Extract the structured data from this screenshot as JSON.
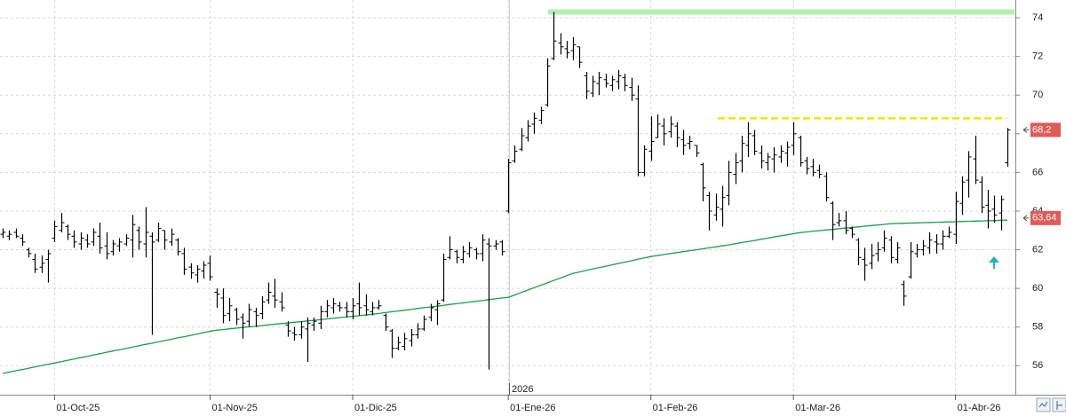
{
  "chart_data": {
    "type": "ohlc",
    "categories": [
      null,
      null,
      null,
      null,
      null,
      null,
      null,
      null,
      "01-Oct-25",
      null,
      null,
      null,
      null,
      null,
      null,
      null,
      null,
      null,
      null,
      null,
      null,
      null,
      null,
      null,
      null,
      null,
      null,
      null,
      null,
      null,
      null,
      null,
      "01-Nov-25",
      null,
      null,
      null,
      null,
      null,
      null,
      null,
      null,
      null,
      null,
      null,
      null,
      null,
      null,
      null,
      null,
      null,
      null,
      null,
      null,
      null,
      "01-Dic-25",
      null,
      null,
      null,
      null,
      null,
      null,
      null,
      null,
      null,
      null,
      null,
      null,
      null,
      null,
      null,
      null,
      null,
      null,
      null,
      null,
      null,
      null,
      null,
      "01-Ene-26",
      null,
      null,
      null,
      null,
      null,
      null,
      null,
      null,
      null,
      null,
      null,
      null,
      null,
      null,
      null,
      null,
      null,
      null,
      null,
      null,
      null,
      "01-Feb-26",
      null,
      null,
      null,
      null,
      null,
      null,
      null,
      null,
      null,
      null,
      null,
      null,
      null,
      null,
      null,
      null,
      null,
      null,
      null,
      null,
      null,
      "01-Mar-26",
      null,
      null,
      null,
      null,
      null,
      null,
      null,
      null,
      null,
      null,
      null,
      null,
      null,
      null,
      null,
      null,
      null,
      null,
      null,
      null,
      null,
      null,
      null,
      null,
      "01-Abr-26",
      null,
      null,
      null,
      null,
      null,
      null,
      null,
      null
    ],
    "ohlc": [
      [
        62.8,
        63.1,
        62.6,
        62.9
      ],
      [
        62.7,
        63.0,
        62.5,
        62.8
      ],
      [
        62.9,
        63.1,
        62.6,
        62.7
      ],
      [
        62.6,
        62.8,
        62.2,
        62.4
      ],
      [
        62.0,
        62.1,
        61.6,
        61.8
      ],
      [
        61.5,
        61.8,
        60.8,
        61.0
      ],
      [
        61.1,
        61.7,
        60.8,
        61.3
      ],
      [
        61.5,
        62.0,
        60.3,
        61.8
      ],
      [
        62.6,
        63.5,
        62.4,
        63.2
      ],
      [
        63.0,
        63.9,
        62.9,
        63.4
      ],
      [
        63.2,
        63.3,
        62.5,
        62.8
      ],
      [
        62.7,
        63.0,
        62.1,
        62.4
      ],
      [
        62.3,
        62.9,
        62.0,
        62.6
      ],
      [
        62.5,
        62.8,
        62.1,
        62.3
      ],
      [
        62.4,
        63.1,
        62.2,
        62.9
      ],
      [
        62.7,
        63.4,
        61.8,
        62.1
      ],
      [
        62.2,
        62.9,
        61.5,
        61.8
      ],
      [
        61.9,
        62.5,
        61.7,
        62.3
      ],
      [
        62.2,
        62.6,
        61.9,
        62.4
      ],
      [
        62.3,
        62.8,
        62.2,
        62.6
      ],
      [
        62.5,
        63.8,
        61.6,
        63.3
      ],
      [
        63.0,
        63.2,
        62.0,
        62.4
      ],
      [
        62.3,
        64.2,
        61.6,
        62.9
      ],
      [
        62.7,
        62.9,
        57.6,
        62.4
      ],
      [
        62.5,
        63.4,
        62.4,
        63.1
      ],
      [
        63.0,
        63.0,
        62.0,
        62.5
      ],
      [
        62.4,
        63.1,
        62.2,
        62.8
      ],
      [
        62.5,
        62.6,
        61.7,
        61.9
      ],
      [
        61.8,
        62.1,
        60.7,
        61.0
      ],
      [
        61.1,
        61.3,
        60.5,
        60.8
      ],
      [
        60.7,
        61.2,
        60.3,
        61.0
      ],
      [
        60.9,
        61.4,
        60.5,
        61.2
      ],
      [
        61.3,
        61.7,
        60.4,
        60.6
      ],
      [
        59.8,
        60.0,
        59.0,
        59.7
      ],
      [
        59.5,
        60.0,
        58.2,
        58.6
      ],
      [
        58.7,
        59.5,
        58.3,
        59.1
      ],
      [
        58.9,
        59.0,
        58.1,
        58.4
      ],
      [
        58.5,
        58.7,
        57.4,
        58.2
      ],
      [
        58.3,
        59.2,
        58.0,
        58.9
      ],
      [
        58.8,
        59.0,
        58.0,
        58.6
      ],
      [
        58.7,
        59.6,
        58.4,
        59.3
      ],
      [
        59.4,
        60.3,
        59.2,
        59.8
      ],
      [
        59.6,
        60.5,
        59.0,
        59.4
      ],
      [
        59.3,
        59.8,
        58.8,
        59.0
      ],
      [
        58.1,
        58.3,
        57.5,
        57.8
      ],
      [
        57.7,
        58.0,
        57.3,
        57.6
      ],
      [
        57.6,
        58.3,
        57.4,
        58.0
      ],
      [
        57.9,
        58.5,
        56.2,
        58.2
      ],
      [
        58.1,
        58.5,
        57.8,
        58.3
      ],
      [
        58.2,
        59.1,
        57.9,
        58.8
      ],
      [
        58.8,
        59.4,
        58.5,
        59.1
      ],
      [
        59.0,
        59.5,
        58.7,
        59.2
      ],
      [
        59.1,
        59.3,
        58.8,
        59.0
      ],
      [
        59.0,
        59.3,
        58.5,
        58.8
      ],
      [
        58.8,
        59.5,
        58.4,
        59.1
      ],
      [
        59.2,
        60.3,
        58.6,
        59.0
      ],
      [
        59.1,
        59.7,
        58.6,
        58.9
      ],
      [
        58.8,
        59.3,
        58.6,
        59.0
      ],
      [
        59.0,
        59.4,
        58.9,
        59.1
      ],
      [
        58.6,
        58.7,
        57.8,
        58.0
      ],
      [
        57.8,
        57.9,
        56.4,
        56.9
      ],
      [
        56.9,
        57.5,
        56.8,
        57.2
      ],
      [
        57.0,
        57.7,
        56.8,
        57.4
      ],
      [
        57.3,
        57.9,
        57.0,
        57.6
      ],
      [
        57.6,
        58.2,
        57.4,
        57.9
      ],
      [
        57.9,
        58.6,
        57.8,
        58.4
      ],
      [
        58.5,
        59.2,
        58.3,
        59.0
      ],
      [
        58.9,
        59.4,
        58.1,
        59.2
      ],
      [
        59.4,
        61.8,
        59.3,
        61.5
      ],
      [
        61.6,
        62.7,
        61.5,
        62.0
      ],
      [
        61.9,
        62.0,
        61.3,
        61.6
      ],
      [
        61.5,
        62.2,
        61.3,
        61.9
      ],
      [
        61.8,
        62.4,
        61.6,
        62.1
      ],
      [
        62.0,
        62.1,
        61.5,
        61.8
      ],
      [
        61.8,
        62.8,
        61.4,
        62.5
      ],
      [
        62.3,
        62.6,
        55.8,
        62.2
      ],
      [
        62.2,
        62.5,
        62.0,
        62.3
      ],
      [
        62.4,
        62.5,
        61.7,
        61.9
      ],
      [
        64.0,
        66.7,
        63.9,
        66.5
      ],
      [
        66.6,
        67.4,
        66.5,
        67.1
      ],
      [
        67.2,
        68.3,
        67.1,
        67.9
      ],
      [
        67.8,
        68.7,
        67.6,
        68.4
      ],
      [
        68.5,
        69.1,
        68.0,
        68.8
      ],
      [
        68.7,
        69.4,
        68.5,
        69.2
      ],
      [
        69.5,
        71.9,
        69.4,
        71.5
      ],
      [
        71.9,
        74.3,
        71.8,
        72.8
      ],
      [
        72.7,
        73.2,
        72.1,
        72.5
      ],
      [
        72.4,
        72.8,
        71.9,
        72.2
      ],
      [
        72.3,
        73.0,
        71.8,
        72.6
      ],
      [
        72.5,
        72.5,
        71.4,
        71.7
      ],
      [
        71.0,
        71.2,
        69.8,
        70.2
      ],
      [
        70.1,
        71.0,
        69.9,
        70.7
      ],
      [
        70.6,
        71.2,
        70.0,
        70.9
      ],
      [
        70.8,
        71.1,
        70.4,
        70.6
      ],
      [
        70.5,
        71.0,
        70.2,
        70.8
      ],
      [
        70.7,
        71.3,
        70.3,
        71.0
      ],
      [
        70.9,
        71.1,
        70.2,
        70.5
      ],
      [
        70.4,
        70.9,
        69.7,
        70.0
      ],
      [
        69.8,
        70.5,
        65.8,
        66.0
      ],
      [
        66.0,
        67.4,
        65.8,
        67.2
      ],
      [
        67.1,
        68.9,
        66.6,
        67.6
      ],
      [
        67.8,
        69.0,
        67.8,
        68.5
      ],
      [
        68.4,
        68.8,
        67.4,
        68.0
      ],
      [
        68.1,
        68.9,
        67.8,
        68.5
      ],
      [
        68.4,
        68.6,
        67.3,
        67.8
      ],
      [
        67.7,
        68.2,
        66.9,
        67.4
      ],
      [
        67.5,
        67.9,
        67.2,
        67.6
      ],
      [
        67.4,
        67.4,
        66.8,
        67.0
      ],
      [
        66.4,
        66.5,
        64.5,
        65.2
      ],
      [
        64.8,
        65.0,
        63.0,
        64.0
      ],
      [
        63.8,
        64.9,
        63.5,
        64.2
      ],
      [
        64.1,
        65.3,
        63.2,
        64.7
      ],
      [
        64.8,
        66.6,
        64.3,
        66.0
      ],
      [
        65.9,
        67.0,
        65.4,
        66.5
      ],
      [
        66.6,
        67.9,
        66.0,
        67.5
      ],
      [
        67.4,
        68.6,
        66.8,
        68.0
      ],
      [
        67.9,
        68.2,
        66.9,
        67.1
      ],
      [
        67.0,
        67.4,
        66.2,
        66.6
      ],
      [
        66.5,
        67.0,
        66.1,
        66.8
      ],
      [
        66.7,
        67.3,
        66.0,
        66.9
      ],
      [
        66.8,
        67.4,
        66.5,
        67.1
      ],
      [
        67.0,
        67.6,
        66.3,
        67.3
      ],
      [
        67.4,
        68.6,
        66.9,
        68.0
      ],
      [
        67.8,
        67.9,
        66.3,
        66.5
      ],
      [
        66.6,
        66.8,
        65.9,
        66.2
      ],
      [
        66.3,
        66.7,
        65.8,
        66.0
      ],
      [
        66.1,
        66.4,
        65.7,
        65.9
      ],
      [
        65.8,
        66.0,
        64.5,
        64.7
      ],
      [
        64.4,
        64.5,
        62.5,
        63.3
      ],
      [
        63.4,
        63.9,
        63.2,
        63.5
      ],
      [
        63.5,
        64.0,
        62.8,
        63.0
      ],
      [
        63.1,
        63.2,
        62.6,
        62.8
      ],
      [
        62.5,
        62.6,
        61.2,
        61.6
      ],
      [
        61.5,
        62.1,
        60.4,
        61.2
      ],
      [
        61.3,
        62.3,
        61.0,
        61.7
      ],
      [
        61.8,
        62.4,
        61.4,
        62.0
      ],
      [
        62.1,
        63.0,
        61.9,
        62.6
      ],
      [
        62.5,
        62.7,
        61.3,
        61.6
      ],
      [
        61.5,
        62.4,
        61.3,
        62.1
      ],
      [
        60.2,
        60.4,
        59.1,
        59.6
      ],
      [
        60.6,
        62.4,
        60.5,
        61.9
      ],
      [
        61.8,
        62.3,
        61.6,
        62.0
      ],
      [
        62.0,
        62.5,
        61.7,
        62.2
      ],
      [
        62.1,
        62.9,
        61.8,
        62.5
      ],
      [
        62.4,
        62.8,
        61.8,
        62.3
      ],
      [
        62.3,
        63.0,
        62.0,
        62.7
      ],
      [
        62.7,
        63.2,
        62.6,
        62.9
      ],
      [
        62.8,
        65.0,
        62.3,
        64.5
      ],
      [
        64.4,
        65.8,
        63.8,
        65.5
      ],
      [
        65.6,
        67.1,
        64.7,
        66.8
      ],
      [
        66.7,
        67.9,
        65.4,
        65.6
      ],
      [
        65.5,
        65.8,
        63.9,
        64.2
      ],
      [
        64.3,
        65.1,
        63.1,
        64.0
      ],
      [
        64.1,
        64.8,
        63.4,
        63.8
      ],
      [
        63.9,
        64.8,
        63.0,
        64.6
      ],
      [
        66.5,
        68.3,
        66.3,
        68.2
      ]
    ],
    "bar_color": "#000000",
    "ma": {
      "color": "#1a9e45",
      "values": [
        55.6,
        55.67,
        55.74,
        55.8,
        55.87,
        55.94,
        56.01,
        56.08,
        56.14,
        56.21,
        56.28,
        56.35,
        56.42,
        56.48,
        56.55,
        56.62,
        56.69,
        56.76,
        56.82,
        56.89,
        56.96,
        57.03,
        57.1,
        57.16,
        57.23,
        57.3,
        57.37,
        57.44,
        57.5,
        57.57,
        57.64,
        57.71,
        57.78,
        57.84,
        57.87,
        57.91,
        57.94,
        57.98,
        58.01,
        58.04,
        58.08,
        58.11,
        58.15,
        58.18,
        58.21,
        58.25,
        58.28,
        58.32,
        58.35,
        58.38,
        58.42,
        58.45,
        58.49,
        58.52,
        58.55,
        58.59,
        58.62,
        58.66,
        58.7,
        58.75,
        58.79,
        58.83,
        58.87,
        58.91,
        58.96,
        59.0,
        59.04,
        59.08,
        59.12,
        59.17,
        59.21,
        59.25,
        59.29,
        59.33,
        59.37,
        59.42,
        59.46,
        59.5,
        59.54,
        59.66,
        59.79,
        59.91,
        60.04,
        60.16,
        60.28,
        60.41,
        60.53,
        60.66,
        60.78,
        60.85,
        60.93,
        61.0,
        61.07,
        61.14,
        61.22,
        61.29,
        61.36,
        61.43,
        61.51,
        61.58,
        61.65,
        61.7,
        61.75,
        61.8,
        61.85,
        61.9,
        61.95,
        62.0,
        62.05,
        62.1,
        62.15,
        62.2,
        62.25,
        62.31,
        62.37,
        62.42,
        62.48,
        62.54,
        62.6,
        62.66,
        62.72,
        62.77,
        62.83,
        62.89,
        62.92,
        62.96,
        62.99,
        63.02,
        63.05,
        63.09,
        63.12,
        63.15,
        63.18,
        63.22,
        63.25,
        63.28,
        63.31,
        63.35,
        63.36,
        63.37,
        63.38,
        63.39,
        63.4,
        63.41,
        63.42,
        63.43,
        63.44,
        63.45,
        63.46,
        63.47,
        63.48,
        63.49,
        63.5,
        63.51,
        63.52,
        63.53
      ]
    },
    "ylim": [
      54.5,
      74.92
    ],
    "yticks": [
      56,
      58,
      60,
      62,
      64,
      66,
      68,
      70,
      72,
      74
    ],
    "grid": true,
    "resistance_band": {
      "value": 74.3,
      "color": "#b5f0b0"
    },
    "resistance_line": {
      "value": 68.8,
      "color": "#f2e600"
    },
    "price_labels": [
      {
        "value": 68.2,
        "label": "68,2"
      },
      {
        "value": 63.64,
        "label": "63,64"
      }
    ],
    "price_label_color": "#e05a58",
    "year_label": "2026"
  }
}
